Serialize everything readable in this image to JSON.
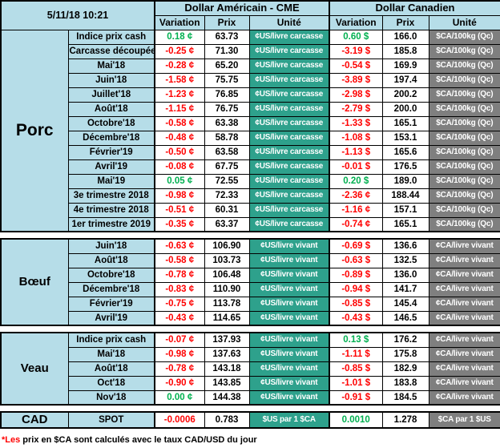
{
  "meta": {
    "datetime": "5/11/18 10:21"
  },
  "colors": {
    "blue": "#B6DDE8",
    "teal": "#2EA18C",
    "gray": "#7F7F7F",
    "pos": "#00B050",
    "neg": "#FF0000"
  },
  "header": {
    "usd_title": "Dollar Américain - CME",
    "cad_title": "Dollar Canadien",
    "columns": {
      "variation": "Variation",
      "prix": "Prix",
      "unite": "Unité"
    }
  },
  "sections": [
    {
      "name": "Porc",
      "key": "porc",
      "size": "big",
      "rows": [
        {
          "label": "Indice prix cash",
          "var_us": "0.18 ¢",
          "prix_us": "63.73",
          "unit_us": "¢US/livre carcasse",
          "var_ca": "0.60 $",
          "prix_ca": "166.0",
          "unit_ca": "$CA/100kg (Qc)"
        },
        {
          "label": "Carcasse découpée",
          "var_us": "-0.25 ¢",
          "prix_us": "71.30",
          "unit_us": "¢US/livre carcasse",
          "var_ca": "-3.19 $",
          "prix_ca": "185.8",
          "unit_ca": "$CA/100kg (Qc)"
        },
        {
          "label": "Mai'18",
          "var_us": "-0.28 ¢",
          "prix_us": "65.20",
          "unit_us": "¢US/livre carcasse",
          "var_ca": "-0.54 $",
          "prix_ca": "169.9",
          "unit_ca": "$CA/100kg (Qc)"
        },
        {
          "label": "Juin'18",
          "var_us": "-1.58 ¢",
          "prix_us": "75.75",
          "unit_us": "¢US/livre carcasse",
          "var_ca": "-3.89 $",
          "prix_ca": "197.4",
          "unit_ca": "$CA/100kg (Qc)"
        },
        {
          "label": "Juillet'18",
          "var_us": "-1.23 ¢",
          "prix_us": "76.85",
          "unit_us": "¢US/livre carcasse",
          "var_ca": "-2.98 $",
          "prix_ca": "200.2",
          "unit_ca": "$CA/100kg (Qc)"
        },
        {
          "label": "Août'18",
          "var_us": "-1.15 ¢",
          "prix_us": "76.75",
          "unit_us": "¢US/livre carcasse",
          "var_ca": "-2.79 $",
          "prix_ca": "200.0",
          "unit_ca": "$CA/100kg (Qc)"
        },
        {
          "label": "Octobre'18",
          "var_us": "-0.58 ¢",
          "prix_us": "63.38",
          "unit_us": "¢US/livre carcasse",
          "var_ca": "-1.33 $",
          "prix_ca": "165.1",
          "unit_ca": "$CA/100kg (Qc)"
        },
        {
          "label": "Décembre'18",
          "var_us": "-0.48 ¢",
          "prix_us": "58.78",
          "unit_us": "¢US/livre carcasse",
          "var_ca": "-1.08 $",
          "prix_ca": "153.1",
          "unit_ca": "$CA/100kg (Qc)"
        },
        {
          "label": "Février'19",
          "var_us": "-0.50 ¢",
          "prix_us": "63.58",
          "unit_us": "¢US/livre carcasse",
          "var_ca": "-1.13 $",
          "prix_ca": "165.6",
          "unit_ca": "$CA/100kg (Qc)"
        },
        {
          "label": "Avril'19",
          "var_us": "-0.08 ¢",
          "prix_us": "67.75",
          "unit_us": "¢US/livre carcasse",
          "var_ca": "-0.01 $",
          "prix_ca": "176.5",
          "unit_ca": "$CA/100kg (Qc)"
        },
        {
          "label": "Mai'19",
          "var_us": "0.05 ¢",
          "prix_us": "72.55",
          "unit_us": "¢US/livre carcasse",
          "var_ca": "0.20 $",
          "prix_ca": "189.0",
          "unit_ca": "$CA/100kg (Qc)"
        },
        {
          "label": "3e trimestre 2018",
          "var_us": "-0.98 ¢",
          "prix_us": "72.33",
          "unit_us": "¢US/livre carcasse",
          "var_ca": "-2.36 ¢",
          "prix_ca": "188.44",
          "unit_ca": "$CA/100kg (Qc)"
        },
        {
          "label": "4e trimestre 2018",
          "var_us": "-0.51 ¢",
          "prix_us": "60.31",
          "unit_us": "¢US/livre carcasse",
          "var_ca": "-1.16 ¢",
          "prix_ca": "157.1",
          "unit_ca": "$CA/100kg (Qc)"
        },
        {
          "label": "1er trimestre 2019",
          "var_us": "-0.35 ¢",
          "prix_us": "63.37",
          "unit_us": "¢US/livre carcasse",
          "var_ca": "-0.74 ¢",
          "prix_ca": "165.1",
          "unit_ca": "$CA/100kg (Qc)"
        }
      ]
    },
    {
      "name": "Bœuf",
      "key": "boeuf",
      "size": "mid",
      "rows": [
        {
          "label": "Juin'18",
          "var_us": "-0.63 ¢",
          "prix_us": "106.90",
          "unit_us": "¢US/livre vivant",
          "var_ca": "-0.69 $",
          "prix_ca": "136.6",
          "unit_ca": "¢CA/livre vivant"
        },
        {
          "label": "Août'18",
          "var_us": "-0.58 ¢",
          "prix_us": "103.73",
          "unit_us": "¢US/livre vivant",
          "var_ca": "-0.63 $",
          "prix_ca": "132.5",
          "unit_ca": "¢CA/livre vivant"
        },
        {
          "label": "Octobre'18",
          "var_us": "-0.78 ¢",
          "prix_us": "106.48",
          "unit_us": "¢US/livre vivant",
          "var_ca": "-0.89 $",
          "prix_ca": "136.0",
          "unit_ca": "¢CA/livre vivant"
        },
        {
          "label": "Décembre'18",
          "var_us": "-0.83 ¢",
          "prix_us": "110.90",
          "unit_us": "¢US/livre vivant",
          "var_ca": "-0.94 $",
          "prix_ca": "141.7",
          "unit_ca": "¢CA/livre vivant"
        },
        {
          "label": "Février'19",
          "var_us": "-0.75 ¢",
          "prix_us": "113.78",
          "unit_us": "¢US/livre vivant",
          "var_ca": "-0.85 $",
          "prix_ca": "145.4",
          "unit_ca": "¢CA/livre vivant"
        },
        {
          "label": "Avril'19",
          "var_us": "-0.43 ¢",
          "prix_us": "114.65",
          "unit_us": "¢US/livre vivant",
          "var_ca": "-0.43 $",
          "prix_ca": "146.5",
          "unit_ca": "¢CA/livre vivant"
        }
      ]
    },
    {
      "name": "Veau",
      "key": "veau",
      "size": "mid",
      "rows": [
        {
          "label": "Indice prix cash",
          "var_us": "-0.07 ¢",
          "prix_us": "137.93",
          "unit_us": "¢US/livre vivant",
          "var_ca": "0.13 $",
          "prix_ca": "176.2",
          "unit_ca": "¢CA/livre vivant"
        },
        {
          "label": "Mai'18",
          "var_us": "-0.98 ¢",
          "prix_us": "137.63",
          "unit_us": "¢US/livre vivant",
          "var_ca": "-1.11 $",
          "prix_ca": "175.8",
          "unit_ca": "¢CA/livre vivant"
        },
        {
          "label": "Août'18",
          "var_us": "-0.78 ¢",
          "prix_us": "143.18",
          "unit_us": "¢US/livre vivant",
          "var_ca": "-0.85 $",
          "prix_ca": "182.9",
          "unit_ca": "¢CA/livre vivant"
        },
        {
          "label": "Oct'18",
          "var_us": "-0.90 ¢",
          "prix_us": "143.85",
          "unit_us": "¢US/livre vivant",
          "var_ca": "-1.01 $",
          "prix_ca": "183.8",
          "unit_ca": "¢CA/livre vivant"
        },
        {
          "label": "Nov'18",
          "var_us": "0.00 ¢",
          "prix_us": "144.38",
          "unit_us": "¢US/livre vivant",
          "var_ca": "-0.91 $",
          "prix_ca": "184.5",
          "unit_ca": "¢CA/livre vivant"
        }
      ]
    }
  ],
  "cad": {
    "name": "CAD",
    "label": "SPOT",
    "var_us": "-0.0006",
    "prix_us": "0.783",
    "unit_us": "$US par 1 $CA",
    "var_ca": "0.0010",
    "prix_ca": "1.278",
    "unit_ca": "$CA par 1 $US"
  },
  "footer": {
    "highlight": "*Les",
    "text": " prix en $CA sont calculés avec le taux CAD/USD du jour"
  }
}
